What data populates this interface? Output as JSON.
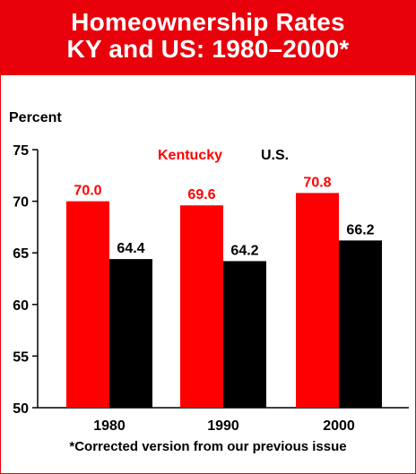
{
  "header": {
    "title_line1": "Homeownership Rates",
    "title_line2": "KY and US: 1980–2000*"
  },
  "footnote": "*Corrected version from our previous issue",
  "colors": {
    "brand_red": "#e8000b",
    "kentucky": "#ff0000",
    "us": "#000000"
  },
  "chart_data": {
    "type": "bar",
    "title": "Homeownership Rates KY and US: 1980–2000*",
    "ylabel": "Percent",
    "xlabel": "",
    "categories": [
      "1980",
      "1990",
      "2000"
    ],
    "series": [
      {
        "name": "Kentucky",
        "values": [
          70.0,
          69.6,
          70.8
        ],
        "labels": [
          "70.0",
          "69.6",
          "70.8"
        ],
        "color": "#ff0000"
      },
      {
        "name": "U.S.",
        "values": [
          64.4,
          64.2,
          66.2
        ],
        "labels": [
          "64.4",
          "64.2",
          "66.2"
        ],
        "color": "#000000"
      }
    ],
    "ylim": [
      50,
      75
    ],
    "yticks": [
      50,
      55,
      60,
      65,
      70,
      75
    ],
    "grid": false,
    "legend": "top-center"
  }
}
